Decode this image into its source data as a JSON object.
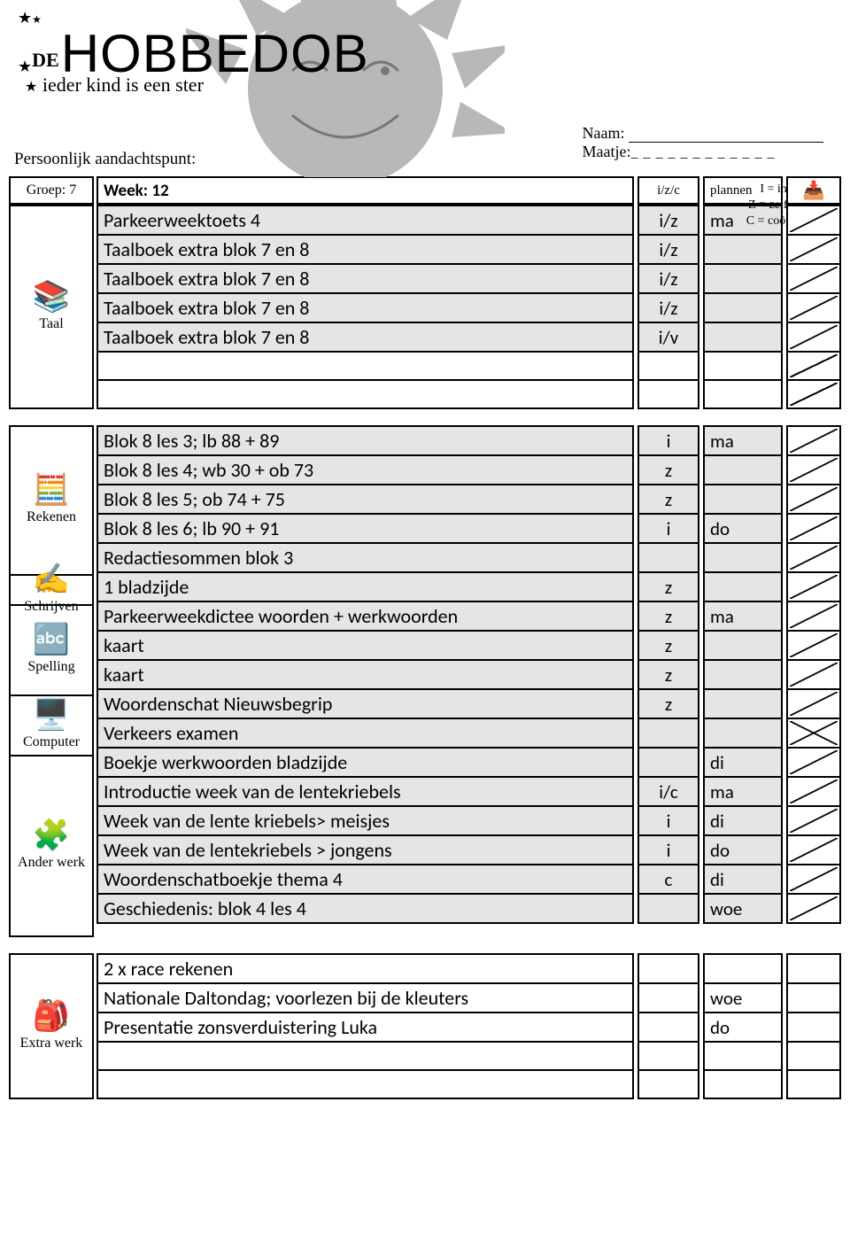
{
  "logo": {
    "small": "DE",
    "big": "HOBBEDOB",
    "tagline": "ieder kind is een ster"
  },
  "labels": {
    "naam": "Naam:",
    "maatje": "Maatje:",
    "aandacht": "Persoonlijk aandachtspunt:",
    "groep_label": "Groep:",
    "groep_val": "7",
    "week": "Week: 12",
    "izc": "i/z/c",
    "plannen": "plannen"
  },
  "legend": {
    "i": "I = instructie",
    "z": "Z = zelfstandig",
    "c": "C = coöperatief"
  },
  "colors": {
    "shade": "#e5e5e5",
    "border": "#000000",
    "bg": "#ffffff"
  },
  "subjects": {
    "taal": "Taal",
    "rekenen": "Rekenen",
    "schrijven": "Schrijven",
    "spelling": "Spelling",
    "computer": "Computer",
    "ander": "Ander werk",
    "extra": "Extra werk"
  },
  "sections": [
    {
      "side": {
        "label_key": "taal",
        "icon": "📚"
      },
      "rows": [
        {
          "task": "Parkeerweektoets 4",
          "izc": "i/z",
          "plan": "ma",
          "shaded": true,
          "check": "slash"
        },
        {
          "task": "Taalboek extra blok 7 en 8",
          "izc": "i/z",
          "plan": "",
          "shaded": true,
          "check": "slash"
        },
        {
          "task": "Taalboek extra blok 7 en 8",
          "izc": "i/z",
          "plan": "",
          "shaded": true,
          "check": "slash"
        },
        {
          "task": "Taalboek extra blok 7 en 8",
          "izc": "i/z",
          "plan": "",
          "shaded": true,
          "check": "slash"
        },
        {
          "task": "Taalboek extra blok 7 en 8",
          "izc": "i/v",
          "plan": "",
          "shaded": true,
          "check": "slash"
        },
        {
          "task": "",
          "izc": "",
          "plan": "",
          "shaded": false,
          "check": "slash"
        },
        {
          "task": "",
          "izc": "",
          "plan": "",
          "shaded": false,
          "check": "slash"
        }
      ]
    },
    {
      "side_multi": [
        {
          "label_key": "rekenen",
          "icon": "🧮",
          "span": 5
        },
        {
          "label_key": "schrijven",
          "icon": "✍️",
          "span": 1
        },
        {
          "label_key": "spelling",
          "icon": "🔤",
          "span": 3
        },
        {
          "label_key": "computer",
          "icon": "🖥️",
          "span": 2
        },
        {
          "label_key": "ander",
          "icon": "🧩",
          "span": 6
        }
      ],
      "rows": [
        {
          "task": "Blok 8 les 3; lb 88  + 89",
          "izc": "i",
          "plan": "ma",
          "shaded": true,
          "check": "slash"
        },
        {
          "task": "Blok 8 les 4; wb 30 + ob 73",
          "izc": "z",
          "plan": "",
          "shaded": true,
          "check": "slash"
        },
        {
          "task": "Blok 8 les 5; ob 74 + 75",
          "izc": "z",
          "plan": "",
          "shaded": true,
          "check": "slash"
        },
        {
          "task": "Blok 8 les 6; lb 90 + 91",
          "izc": "i",
          "plan": "do",
          "shaded": true,
          "check": "slash"
        },
        {
          "task": "Redactiesommen blok 3",
          "izc": "",
          "plan": "",
          "shaded": true,
          "check": "slash"
        },
        {
          "task": "1 bladzijde",
          "izc": "z",
          "plan": "",
          "shaded": true,
          "check": "slash"
        },
        {
          "task": "Parkeerweekdictee woorden + werkwoorden",
          "izc": "z",
          "plan": "ma",
          "shaded": true,
          "check": "slash"
        },
        {
          "task": "kaart",
          "izc": "z",
          "plan": "",
          "shaded": true,
          "check": "slash"
        },
        {
          "task": "kaart",
          "izc": "z",
          "plan": "",
          "shaded": true,
          "check": "slash"
        },
        {
          "task": "Woordenschat Nieuwsbegrip",
          "izc": "z",
          "plan": "",
          "shaded": true,
          "check": "slash"
        },
        {
          "task": "Verkeers examen",
          "izc": "",
          "plan": "",
          "shaded": true,
          "check": "x"
        },
        {
          "task": "Boekje werkwoorden bladzijde",
          "izc": "",
          "plan": "di",
          "shaded": true,
          "check": "slash"
        },
        {
          "task": "Introductie week van de lentekriebels",
          "izc": "i/c",
          "plan": "ma",
          "shaded": true,
          "check": "slash"
        },
        {
          "task": "Week van de lente kriebels> meisjes",
          "izc": "i",
          "plan": "di",
          "shaded": true,
          "check": "slash"
        },
        {
          "task": "Week van de lentekriebels > jongens",
          "izc": "i",
          "plan": "do",
          "shaded": true,
          "check": "slash"
        },
        {
          "task": "Woordenschatboekje thema 4",
          "izc": "c",
          "plan": "di",
          "shaded": true,
          "check": "slash"
        },
        {
          "task": "Geschiedenis: blok 4 les 4",
          "izc": "",
          "plan": "woe",
          "shaded": true,
          "check": "slash"
        }
      ]
    },
    {
      "side": {
        "label_key": "extra",
        "icon": "🎒"
      },
      "rows": [
        {
          "task": "2 x race rekenen",
          "izc": "",
          "plan": "",
          "shaded": false,
          "check": "empty"
        },
        {
          "task": "Nationale Daltondag; voorlezen bij de kleuters",
          "izc": "",
          "plan": "woe",
          "shaded": false,
          "check": "empty"
        },
        {
          "task": "Presentatie zonsverduistering Luka",
          "izc": "",
          "plan": "do",
          "shaded": false,
          "check": "empty"
        },
        {
          "task": "",
          "izc": "",
          "plan": "",
          "shaded": false,
          "check": "empty"
        },
        {
          "task": "",
          "izc": "",
          "plan": "",
          "shaded": false,
          "check": "empty"
        }
      ]
    }
  ]
}
